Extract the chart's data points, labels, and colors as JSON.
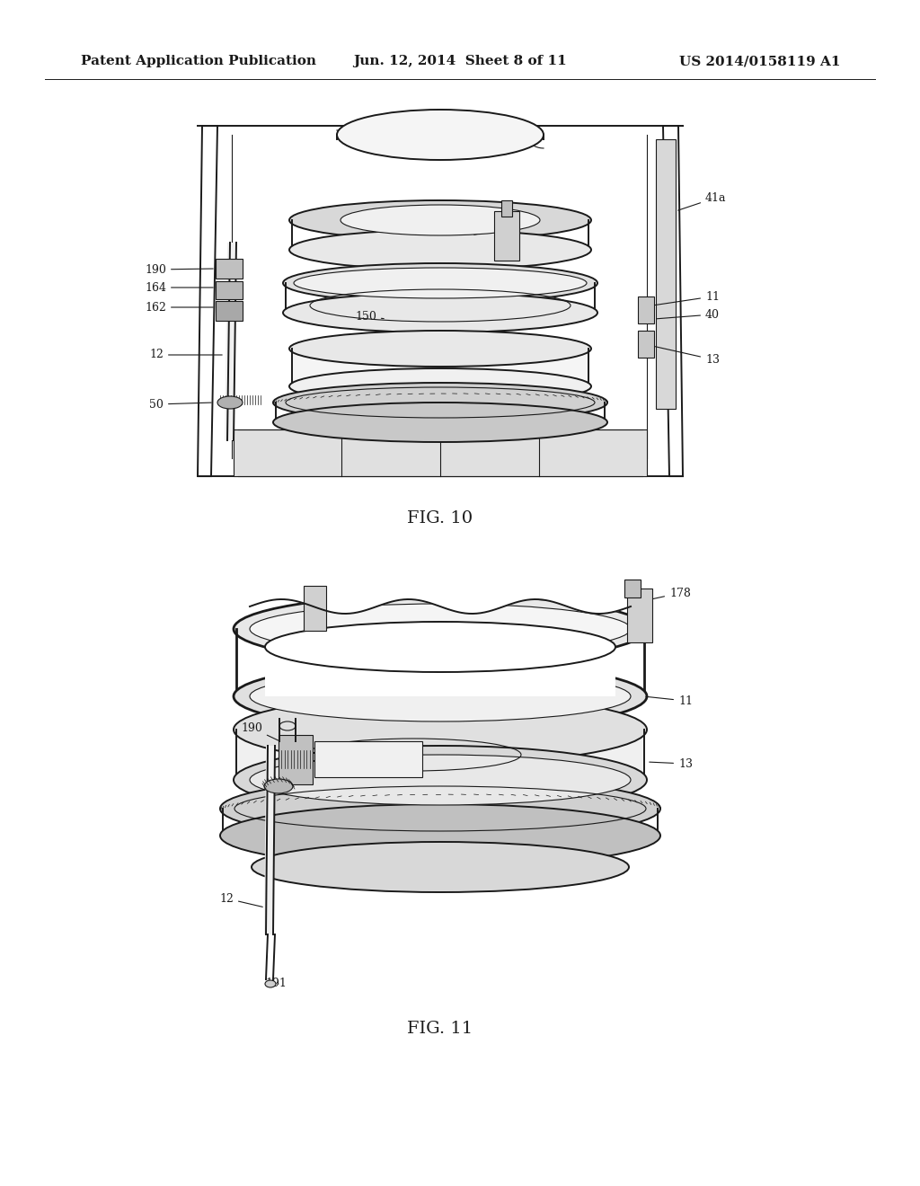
{
  "background_color": "#ffffff",
  "header_left": "Patent Application Publication",
  "header_center": "Jun. 12, 2014  Sheet 8 of 11",
  "header_right": "US 2014/0158119 A1",
  "header_fontsize": 11,
  "header_fontweight": "bold",
  "fig10_label": "FIG. 10",
  "fig11_label": "FIG. 11",
  "fig_label_fontsize": 14,
  "line_color": "#1a1a1a",
  "ann_fontsize": 9
}
